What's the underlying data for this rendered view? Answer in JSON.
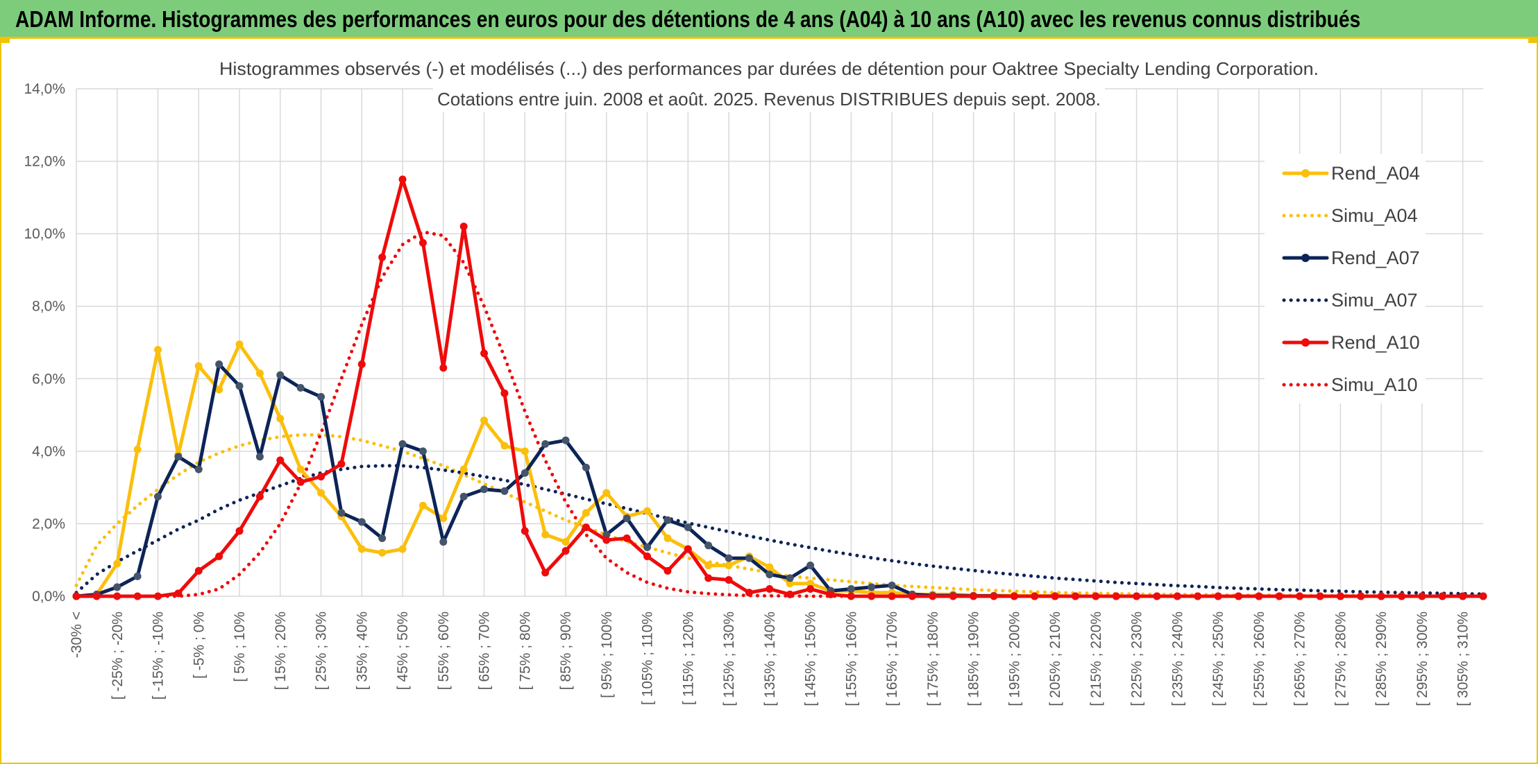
{
  "banner": {
    "title": "ADAM Informe. Histogrammes des performances en euros pour des détentions de 4 ans (A04) à 10 ans (A10) avec les revenus connus distribués"
  },
  "colors": {
    "banner_bg": "#7ccc7c",
    "accent": "#f3c300",
    "rend_a04": "#fbbf0c",
    "rend_a07": "#0d2457",
    "rend_a10": "#ee0b0b",
    "grid": "#d9d9d9"
  },
  "chart_data": {
    "type": "line",
    "title": [
      "Histogrammes observés (-) et modélisés (...) des performances par durées de détention pour Oaktree Specialty Lending Corporation.",
      "Cotations entre juin. 2008 et août. 2025. Revenus DISTRIBUES depuis sept. 2008."
    ],
    "xlabel": "",
    "ylabel": "",
    "ylim": [
      0,
      14
    ],
    "yticks": [
      "0,0%",
      "2,0%",
      "4,0%",
      "6,0%",
      "8,0%",
      "10,0%",
      "12,0%",
      "14,0%"
    ],
    "grid": true,
    "legend_position": "right",
    "x_tick_labels": [
      "-30% <",
      "[ -25% ; -20%",
      "[ -15% ; -10%",
      "[ -5% ; 0%",
      "[ 5% ; 10%",
      "[ 15% ; 20%",
      "[ 25% ; 30%",
      "[ 35% ; 40%",
      "[ 45% ; 50%",
      "[ 55% ; 60%",
      "[ 65% ; 70%",
      "[ 75% ; 80%",
      "[ 85% ; 90%",
      "[ 95% ; 100%",
      "[ 105% ; 110%",
      "[ 115% ; 120%",
      "[ 125% ; 130%",
      "[ 135% ; 140%",
      "[ 145% ; 150%",
      "[ 155% ; 160%",
      "[ 165% ; 170%",
      "[ 175% ; 180%",
      "[ 185% ; 190%",
      "[ 195% ; 200%",
      "[ 205% ; 210%",
      "[ 215% ; 220%",
      "[ 225% ; 230%",
      "[ 235% ; 240%",
      "[ 245% ; 250%",
      "[ 255% ; 260%",
      "[ 265% ; 270%",
      "[ 275% ; 280%",
      "[ 285% ; 290%",
      "[ 295% ; 300%",
      "[ 305% ; 310%"
    ],
    "series": [
      {
        "name": "Rend_A04",
        "style": "solid",
        "marker": true,
        "color": "#fbbf0c",
        "values": [
          0.0,
          0.05,
          0.9,
          4.05,
          6.8,
          3.9,
          6.35,
          5.7,
          6.95,
          6.15,
          4.9,
          3.5,
          2.85,
          2.2,
          1.3,
          1.2,
          1.3,
          2.5,
          2.15,
          3.5,
          4.85,
          4.15,
          4.0,
          1.7,
          1.5,
          2.3,
          2.85,
          2.2,
          2.35,
          1.6,
          1.3,
          0.85,
          0.85,
          1.1,
          0.8,
          0.35,
          0.35,
          0.15,
          0.15,
          0.1,
          0.1,
          0.05,
          0.05,
          0.05,
          0.02,
          0.02,
          0.02,
          0.01,
          0.01,
          0.0,
          0.0,
          0.0,
          0.0,
          0.0,
          0.0,
          0.0,
          0.0,
          0.0,
          0.0,
          0.0,
          0.0,
          0.0,
          0.0,
          0.0,
          0.0,
          0.0,
          0.0,
          0.0,
          0.0,
          0.0
        ]
      },
      {
        "name": "Simu_A04",
        "style": "dotted",
        "marker": false,
        "color": "#fbbf0c",
        "values": [
          0.3,
          1.4,
          2.0,
          2.5,
          2.95,
          3.35,
          3.7,
          3.95,
          4.15,
          4.3,
          4.4,
          4.45,
          4.45,
          4.4,
          4.3,
          4.15,
          4.0,
          3.8,
          3.6,
          3.35,
          3.1,
          2.85,
          2.6,
          2.35,
          2.1,
          1.9,
          1.7,
          1.5,
          1.35,
          1.2,
          1.05,
          0.95,
          0.85,
          0.75,
          0.65,
          0.55,
          0.5,
          0.45,
          0.4,
          0.35,
          0.3,
          0.27,
          0.24,
          0.21,
          0.18,
          0.16,
          0.14,
          0.12,
          0.1,
          0.09,
          0.08,
          0.07,
          0.06,
          0.05,
          0.05,
          0.04,
          0.04,
          0.03,
          0.03,
          0.03,
          0.02,
          0.02,
          0.02,
          0.02,
          0.01,
          0.01,
          0.01,
          0.01,
          0.01,
          0.01
        ]
      },
      {
        "name": "Rend_A07",
        "style": "solid",
        "marker": true,
        "color": "#0d2457",
        "values": [
          0.0,
          0.05,
          0.25,
          0.55,
          2.75,
          3.85,
          3.5,
          6.4,
          5.8,
          3.85,
          6.1,
          5.75,
          5.5,
          2.3,
          2.05,
          1.6,
          4.2,
          4.0,
          1.5,
          2.75,
          2.95,
          2.9,
          3.4,
          4.2,
          4.3,
          3.55,
          1.7,
          2.15,
          1.35,
          2.1,
          1.9,
          1.4,
          1.05,
          1.05,
          0.6,
          0.5,
          0.85,
          0.15,
          0.2,
          0.25,
          0.3,
          0.05,
          0.02,
          0.02,
          0.01,
          0.01,
          0.0,
          0.0,
          0.0,
          0.0,
          0.0,
          0.0,
          0.0,
          0.0,
          0.0,
          0.0,
          0.0,
          0.0,
          0.0,
          0.0,
          0.0,
          0.0,
          0.0,
          0.0,
          0.0,
          0.0,
          0.0,
          0.0,
          0.0,
          0.0
        ]
      },
      {
        "name": "Simu_A07",
        "style": "dotted",
        "marker": false,
        "color": "#0d2457",
        "values": [
          0.1,
          0.6,
          0.95,
          1.25,
          1.55,
          1.85,
          2.1,
          2.4,
          2.65,
          2.85,
          3.05,
          3.25,
          3.4,
          3.5,
          3.58,
          3.6,
          3.6,
          3.55,
          3.48,
          3.4,
          3.3,
          3.2,
          3.08,
          2.95,
          2.82,
          2.68,
          2.55,
          2.42,
          2.28,
          2.15,
          2.02,
          1.9,
          1.78,
          1.66,
          1.55,
          1.44,
          1.34,
          1.24,
          1.15,
          1.06,
          0.98,
          0.9,
          0.83,
          0.77,
          0.71,
          0.65,
          0.6,
          0.55,
          0.5,
          0.46,
          0.42,
          0.38,
          0.35,
          0.32,
          0.29,
          0.27,
          0.24,
          0.22,
          0.2,
          0.18,
          0.17,
          0.15,
          0.14,
          0.12,
          0.11,
          0.1,
          0.09,
          0.08,
          0.07,
          0.06
        ]
      },
      {
        "name": "Rend_A10",
        "style": "solid",
        "marker": true,
        "color": "#ee0b0b",
        "values": [
          0.0,
          0.0,
          0.0,
          0.0,
          0.0,
          0.08,
          0.7,
          1.1,
          1.8,
          2.75,
          3.75,
          3.15,
          3.3,
          3.65,
          6.4,
          9.35,
          11.5,
          9.75,
          6.3,
          10.2,
          6.7,
          5.6,
          1.8,
          0.65,
          1.25,
          1.9,
          1.55,
          1.6,
          1.1,
          0.7,
          1.3,
          0.5,
          0.45,
          0.1,
          0.2,
          0.05,
          0.2,
          0.05,
          0.0,
          0.0,
          0.0,
          0.0,
          0.0,
          0.0,
          0.0,
          0.0,
          0.0,
          0.0,
          0.0,
          0.0,
          0.0,
          0.0,
          0.0,
          0.0,
          0.0,
          0.0,
          0.0,
          0.0,
          0.0,
          0.0,
          0.0,
          0.0,
          0.0,
          0.0,
          0.0,
          0.0,
          0.0,
          0.0,
          0.0,
          0.0
        ]
      },
      {
        "name": "Simu_A10",
        "style": "dotted",
        "marker": false,
        "color": "#ee0b0b",
        "values": [
          0.0,
          0.0,
          0.0,
          0.0,
          0.0,
          0.0,
          0.05,
          0.2,
          0.6,
          1.2,
          2.0,
          3.1,
          4.5,
          6.0,
          7.5,
          8.8,
          9.7,
          10.05,
          9.95,
          9.2,
          8.0,
          6.6,
          5.1,
          3.75,
          2.6,
          1.7,
          1.05,
          0.65,
          0.38,
          0.22,
          0.12,
          0.07,
          0.04,
          0.02,
          0.01,
          0.01,
          0.0,
          0.0,
          0.0,
          0.0,
          0.0,
          0.0,
          0.0,
          0.0,
          0.0,
          0.0,
          0.0,
          0.0,
          0.0,
          0.0,
          0.0,
          0.0,
          0.0,
          0.0,
          0.0,
          0.0,
          0.0,
          0.0,
          0.0,
          0.0,
          0.0,
          0.0,
          0.0,
          0.0,
          0.0,
          0.0,
          0.0,
          0.0,
          0.0,
          0.0
        ]
      }
    ]
  }
}
